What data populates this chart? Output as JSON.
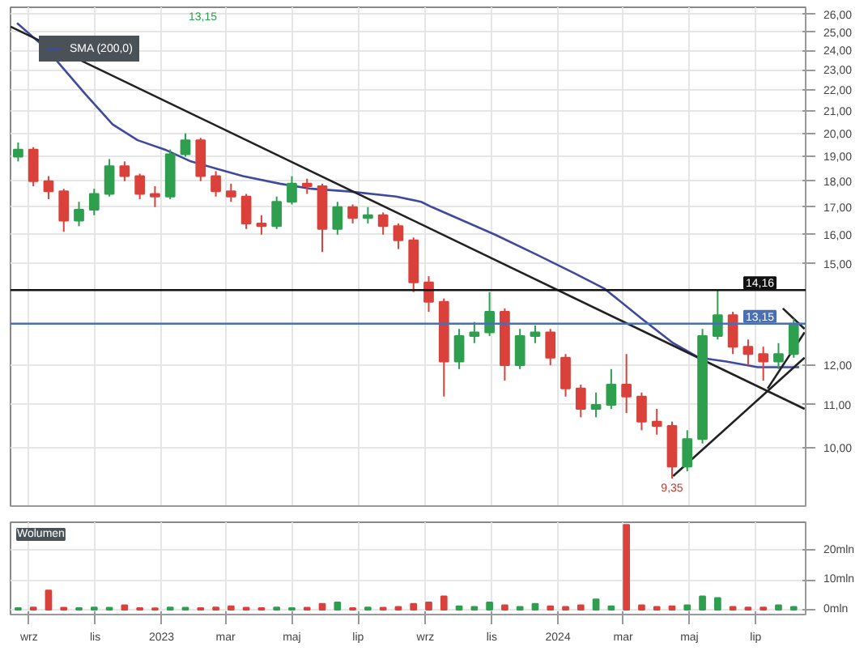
{
  "chart_data": [
    {
      "type": "candlestick",
      "x": [
        "2022-08-22",
        "2022-09-05",
        "2022-09-19",
        "2022-10-03",
        "2022-10-17",
        "2022-10-31",
        "2022-11-14",
        "2022-11-28",
        "2022-12-12",
        "2022-12-26",
        "2023-01-09",
        "2023-01-23",
        "2023-02-06",
        "2023-02-20",
        "2023-03-06",
        "2023-03-20",
        "2023-04-03",
        "2023-04-17",
        "2023-05-01",
        "2023-05-15",
        "2023-05-29",
        "2023-06-12",
        "2023-06-26",
        "2023-07-10",
        "2023-07-24",
        "2023-08-07",
        "2023-08-21",
        "2023-09-04",
        "2023-09-18",
        "2023-10-02",
        "2023-10-16",
        "2023-10-30",
        "2023-11-13",
        "2023-11-27",
        "2023-12-11",
        "2023-12-25",
        "2024-01-08",
        "2024-01-22",
        "2024-02-05",
        "2024-02-19",
        "2024-03-04",
        "2024-03-18",
        "2024-04-01",
        "2024-04-15",
        "2024-04-29",
        "2024-05-13",
        "2024-05-27",
        "2024-06-10",
        "2024-06-24",
        "2024-07-08",
        "2024-07-22",
        "2024-08-05"
      ],
      "ohlc": [
        [
          19.0,
          19.6,
          18.8,
          19.3
        ],
        [
          19.3,
          19.4,
          17.8,
          18.0
        ],
        [
          18.0,
          18.2,
          17.3,
          17.6
        ],
        [
          17.6,
          17.7,
          16.1,
          16.5
        ],
        [
          16.5,
          17.2,
          16.3,
          16.9
        ],
        [
          16.9,
          17.7,
          16.7,
          17.5
        ],
        [
          17.5,
          18.9,
          17.4,
          18.6
        ],
        [
          18.6,
          18.8,
          18.0,
          18.2
        ],
        [
          18.2,
          18.3,
          17.3,
          17.5
        ],
        [
          17.5,
          17.8,
          17.0,
          17.4
        ],
        [
          17.4,
          19.3,
          17.3,
          19.1
        ],
        [
          19.1,
          20.0,
          19.0,
          19.7
        ],
        [
          19.7,
          19.8,
          18.0,
          18.2
        ],
        [
          18.2,
          18.4,
          17.4,
          17.6
        ],
        [
          17.6,
          17.9,
          17.2,
          17.4
        ],
        [
          17.4,
          17.5,
          16.2,
          16.4
        ],
        [
          16.4,
          16.7,
          16.0,
          16.3
        ],
        [
          16.3,
          17.4,
          16.2,
          17.2
        ],
        [
          17.2,
          18.2,
          17.1,
          17.9
        ],
        [
          17.9,
          18.1,
          17.5,
          17.8
        ],
        [
          17.8,
          17.9,
          15.4,
          16.2
        ],
        [
          16.2,
          17.2,
          16.0,
          17.0
        ],
        [
          17.0,
          17.1,
          16.4,
          16.6
        ],
        [
          16.6,
          17.0,
          16.4,
          16.7
        ],
        [
          16.7,
          16.8,
          16.0,
          16.3
        ],
        [
          16.3,
          16.4,
          15.5,
          15.8
        ],
        [
          15.8,
          15.9,
          14.1,
          14.4
        ],
        [
          14.4,
          14.6,
          13.5,
          13.8
        ],
        [
          13.8,
          13.9,
          11.2,
          12.1
        ],
        [
          12.1,
          13.0,
          11.9,
          12.8
        ],
        [
          12.8,
          13.2,
          12.6,
          12.9
        ],
        [
          12.9,
          14.1,
          12.8,
          13.5
        ],
        [
          13.5,
          13.6,
          11.6,
          12.0
        ],
        [
          12.0,
          13.0,
          11.9,
          12.8
        ],
        [
          12.8,
          13.1,
          12.6,
          12.9
        ],
        [
          12.9,
          13.0,
          12.0,
          12.2
        ],
        [
          12.2,
          12.3,
          11.2,
          11.4
        ],
        [
          11.4,
          11.5,
          10.7,
          10.9
        ],
        [
          10.9,
          11.3,
          10.7,
          11.0
        ],
        [
          11.0,
          11.9,
          10.9,
          11.5
        ],
        [
          11.5,
          12.3,
          10.8,
          11.2
        ],
        [
          11.2,
          11.3,
          10.4,
          10.6
        ],
        [
          10.6,
          10.9,
          10.3,
          10.5
        ],
        [
          10.5,
          10.6,
          9.35,
          9.6
        ],
        [
          9.6,
          10.4,
          9.5,
          10.2
        ],
        [
          10.2,
          13.0,
          10.1,
          12.8
        ],
        [
          12.8,
          14.16,
          12.7,
          13.4
        ],
        [
          13.4,
          13.5,
          12.3,
          12.5
        ],
        [
          12.5,
          12.7,
          12.0,
          12.3
        ],
        [
          12.3,
          12.5,
          11.6,
          12.1
        ],
        [
          12.1,
          12.6,
          11.9,
          12.3
        ],
        [
          12.3,
          13.3,
          12.2,
          13.15
        ]
      ],
      "colors": [
        "#2e9e4f",
        "#d9413a",
        "#d9413a",
        "#d9413a",
        "#2e9e4f",
        "#2e9e4f",
        "#2e9e4f",
        "#d9413a",
        "#d9413a",
        "#d9413a",
        "#2e9e4f",
        "#2e9e4f",
        "#d9413a",
        "#d9413a",
        "#d9413a",
        "#d9413a",
        "#d9413a",
        "#2e9e4f",
        "#2e9e4f",
        "#d9413a",
        "#d9413a",
        "#2e9e4f",
        "#d9413a",
        "#2e9e4f",
        "#d9413a",
        "#d9413a",
        "#d9413a",
        "#d9413a",
        "#d9413a",
        "#2e9e4f",
        "#2e9e4f",
        "#2e9e4f",
        "#d9413a",
        "#2e9e4f",
        "#2e9e4f",
        "#d9413a",
        "#d9413a",
        "#d9413a",
        "#2e9e4f",
        "#2e9e4f",
        "#d9413a",
        "#d9413a",
        "#d9413a",
        "#d9413a",
        "#2e9e4f",
        "#2e9e4f",
        "#2e9e4f",
        "#d9413a",
        "#d9413a",
        "#d9413a",
        "#2e9e4f",
        "#2e9e4f"
      ],
      "series": [
        {
          "name": "SMA (200,0)",
          "type": "line",
          "color": "#3f4a9e",
          "x": [
            "2022-08-21",
            "2022-09-17",
            "2022-10-23",
            "2022-11-17",
            "2022-12-10",
            "2023-01-04",
            "2023-01-28",
            "2023-02-21",
            "2023-03-17",
            "2023-04-20",
            "2023-05-19",
            "2023-06-22",
            "2023-08-05",
            "2023-08-28",
            "2023-09-07",
            "2023-11-04",
            "2023-12-13",
            "2024-01-16",
            "2024-02-13",
            "2024-03-18",
            "2024-04-16",
            "2024-05-10",
            "2024-06-04",
            "2024-07-03",
            "2024-08-10"
          ],
          "values": [
            25.5,
            24.1,
            21.8,
            20.4,
            19.7,
            19.3,
            18.8,
            18.5,
            18.2,
            17.9,
            17.7,
            17.6,
            17.4,
            17.2,
            17.0,
            16.0,
            15.3,
            14.7,
            14.2,
            13.3,
            12.6,
            12.2,
            12.1,
            11.95,
            11.95
          ]
        },
        {
          "type": "line",
          "color": "#222222",
          "x": [
            "2022-08-15",
            "2024-08-15"
          ],
          "values": [
            25.3,
            10.9
          ]
        },
        {
          "type": "line",
          "color": "#222222",
          "x": [
            "2024-04-16",
            "2024-08-15"
          ],
          "values": [
            9.4,
            12.2
          ]
        },
        {
          "type": "line",
          "color": "#222222",
          "x": [
            "2024-07-12",
            "2024-08-15"
          ],
          "values": [
            11.4,
            12.9
          ]
        },
        {
          "type": "line",
          "color": "#222222",
          "x": [
            "2024-07-26",
            "2024-08-15"
          ],
          "values": [
            13.6,
            13.0
          ]
        }
      ],
      "xlim": [
        "2022-08-15",
        "2024-08-16"
      ],
      "xticks": [
        {
          "value": "2022-09-01",
          "label": null
        },
        {
          "value": "2022-11-01",
          "label": null
        },
        {
          "value": "2023-01-01",
          "label": null
        },
        {
          "value": "2023-03-01",
          "label": null
        },
        {
          "value": "2023-05-01",
          "label": null
        },
        {
          "value": "2023-07-01",
          "label": null
        },
        {
          "value": "2023-09-01",
          "label": null
        },
        {
          "value": "2023-11-01",
          "label": null
        },
        {
          "value": "2024-01-01",
          "label": null
        },
        {
          "value": "2024-03-01",
          "label": null
        },
        {
          "value": "2024-05-01",
          "label": null
        },
        {
          "value": "2024-07-01",
          "label": null
        }
      ],
      "ylim": [
        8.8,
        26.4
      ],
      "yticks": [
        {
          "value": 10,
          "label": "10,00"
        },
        {
          "value": 11,
          "label": "11,00"
        },
        {
          "value": 12,
          "label": "12,00"
        },
        {
          "value": 15,
          "label": "15,00"
        },
        {
          "value": 16,
          "label": "16,00"
        },
        {
          "value": 17,
          "label": "17,00"
        },
        {
          "value": 18,
          "label": "18,00"
        },
        {
          "value": 19,
          "label": "19,00"
        },
        {
          "value": 20,
          "label": "20,00"
        },
        {
          "value": 21,
          "label": "21,00"
        },
        {
          "value": 22,
          "label": "22,00"
        },
        {
          "value": 23,
          "label": "23,00"
        },
        {
          "value": 24,
          "label": "24,00"
        },
        {
          "value": 25,
          "label": "25,00"
        },
        {
          "value": 26,
          "label": "26,00"
        }
      ],
      "log": true,
      "grid": true,
      "legend": "top left",
      "tick_labels": "y",
      "ref_lines": [
        {
          "axis": "y",
          "value": 14.16,
          "label": "14,16",
          "color": "#111111"
        },
        {
          "axis": "y",
          "value": 13.15,
          "label": "13,15",
          "color": "#4a6fb5"
        }
      ],
      "annotations": [
        "13,15",
        {
          "text": "9,35",
          "x": "2024-04-15",
          "y": 9.35
        }
      ]
    },
    {
      "type": "bar",
      "title": "Wolumen",
      "x": [
        "2022-08-22",
        "2022-09-05",
        "2022-09-19",
        "2022-10-03",
        "2022-10-17",
        "2022-10-31",
        "2022-11-14",
        "2022-11-28",
        "2022-12-12",
        "2022-12-26",
        "2023-01-09",
        "2023-01-23",
        "2023-02-06",
        "2023-02-20",
        "2023-03-06",
        "2023-03-20",
        "2023-04-03",
        "2023-04-17",
        "2023-05-01",
        "2023-05-15",
        "2023-05-29",
        "2023-06-12",
        "2023-06-26",
        "2023-07-10",
        "2023-07-24",
        "2023-08-07",
        "2023-08-21",
        "2023-09-04",
        "2023-09-18",
        "2023-10-02",
        "2023-10-16",
        "2023-10-30",
        "2023-11-13",
        "2023-11-27",
        "2023-12-11",
        "2023-12-25",
        "2024-01-08",
        "2024-01-22",
        "2024-02-05",
        "2024-02-19",
        "2024-03-04",
        "2024-03-18",
        "2024-04-01",
        "2024-04-15",
        "2024-04-29",
        "2024-05-13",
        "2024-05-27",
        "2024-06-10",
        "2024-06-24",
        "2024-07-08",
        "2024-07-22",
        "2024-08-05"
      ],
      "values": [
        0.6,
        0.8,
        6.5,
        0.7,
        0.6,
        0.8,
        0.7,
        1.5,
        0.6,
        0.5,
        0.8,
        0.7,
        0.6,
        0.8,
        1.2,
        0.7,
        0.6,
        0.8,
        0.6,
        0.7,
        2.0,
        2.5,
        0.6,
        0.8,
        0.7,
        1.0,
        2.0,
        2.5,
        4.5,
        1.2,
        1.0,
        2.5,
        1.5,
        1.0,
        2.0,
        1.2,
        1.0,
        1.5,
        3.5,
        1.2,
        28.5,
        1.5,
        1.0,
        1.2,
        1.5,
        4.5,
        4.0,
        1.0,
        0.8,
        0.8,
        1.5,
        1.0
      ],
      "colors": [
        "#2e9e4f",
        "#d9413a",
        "#d9413a",
        "#d9413a",
        "#2e9e4f",
        "#2e9e4f",
        "#2e9e4f",
        "#d9413a",
        "#d9413a",
        "#d9413a",
        "#2e9e4f",
        "#2e9e4f",
        "#d9413a",
        "#d9413a",
        "#d9413a",
        "#d9413a",
        "#d9413a",
        "#2e9e4f",
        "#2e9e4f",
        "#d9413a",
        "#d9413a",
        "#2e9e4f",
        "#d9413a",
        "#2e9e4f",
        "#d9413a",
        "#d9413a",
        "#d9413a",
        "#d9413a",
        "#d9413a",
        "#2e9e4f",
        "#2e9e4f",
        "#2e9e4f",
        "#d9413a",
        "#2e9e4f",
        "#2e9e4f",
        "#d9413a",
        "#d9413a",
        "#d9413a",
        "#2e9e4f",
        "#2e9e4f",
        "#d9413a",
        "#d9413a",
        "#d9413a",
        "#d9413a",
        "#2e9e4f",
        "#2e9e4f",
        "#2e9e4f",
        "#d9413a",
        "#d9413a",
        "#d9413a",
        "#2e9e4f",
        "#2e9e4f"
      ],
      "xlim": [
        "2022-08-15",
        "2024-08-16"
      ],
      "xticks": [
        {
          "value": "2022-09-01",
          "label": "wrz"
        },
        {
          "value": "2022-11-01",
          "label": "lis"
        },
        {
          "value": "2023-01-01",
          "label": "2023"
        },
        {
          "value": "2023-03-01",
          "label": "mar"
        },
        {
          "value": "2023-05-01",
          "label": "maj"
        },
        {
          "value": "2023-07-01",
          "label": "lip"
        },
        {
          "value": "2023-09-01",
          "label": "wrz"
        },
        {
          "value": "2023-11-01",
          "label": "lis"
        },
        {
          "value": "2024-01-01",
          "label": "2024"
        },
        {
          "value": "2024-03-01",
          "label": "mar"
        },
        {
          "value": "2024-05-01",
          "label": "maj"
        },
        {
          "value": "2024-07-01",
          "label": "lip"
        }
      ],
      "ylim": [
        -1.6,
        29.4
      ],
      "yticks": [
        {
          "value": 0,
          "label": "0mln"
        },
        {
          "value": 10,
          "label": "10mln"
        },
        {
          "value": 20,
          "label": "20mln"
        }
      ],
      "grid": true
    }
  ]
}
